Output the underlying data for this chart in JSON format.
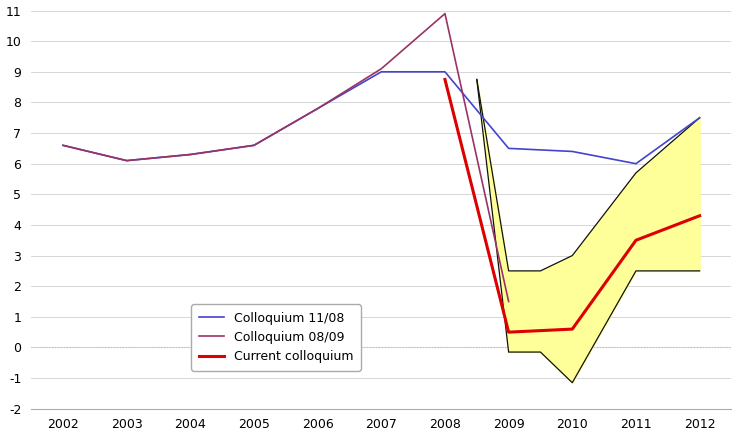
{
  "years_colloquium_1108": [
    2002,
    2003,
    2004,
    2005,
    2006,
    2007,
    2008,
    2009,
    2010,
    2011,
    2012
  ],
  "values_colloquium_1108": [
    6.6,
    6.1,
    6.3,
    6.6,
    7.8,
    9.0,
    9.0,
    6.5,
    6.4,
    6.0,
    7.5
  ],
  "years_colloquium_0809": [
    2002,
    2003,
    2004,
    2005,
    2006,
    2007,
    2008,
    2009
  ],
  "values_colloquium_0809": [
    6.6,
    6.1,
    6.3,
    6.6,
    7.8,
    9.1,
    10.9,
    1.5
  ],
  "years_current": [
    2008,
    2009,
    2010,
    2011,
    2012
  ],
  "values_current": [
    8.75,
    0.5,
    0.6,
    3.5,
    4.3
  ],
  "band_years": [
    2008.5,
    2009,
    2009.5,
    2010,
    2011,
    2012
  ],
  "band_upper": [
    8.75,
    2.5,
    2.5,
    3.0,
    5.7,
    7.5
  ],
  "band_lower": [
    8.75,
    -0.15,
    -0.15,
    -1.15,
    2.5,
    2.5
  ],
  "color_1108": "#4444cc",
  "color_0809": "#993366",
  "color_current": "#dd0000",
  "color_band_fill": "#ffff99",
  "color_band_border": "#111111",
  "ylim": [
    -2,
    11
  ],
  "yticks": [
    -2,
    -1,
    0,
    1,
    2,
    3,
    4,
    5,
    6,
    7,
    8,
    9,
    10,
    11
  ],
  "xlim": [
    2001.5,
    2012.5
  ],
  "xticks": [
    2002,
    2003,
    2004,
    2005,
    2006,
    2007,
    2008,
    2009,
    2010,
    2011,
    2012
  ],
  "legend_labels": [
    "Colloquium 11/08",
    "Colloquium 08/09",
    "Current colloquium"
  ],
  "legend_colors": [
    "#4444cc",
    "#993366",
    "#dd0000"
  ],
  "grid_color": "#d0d0d0",
  "background_color": "#ffffff"
}
